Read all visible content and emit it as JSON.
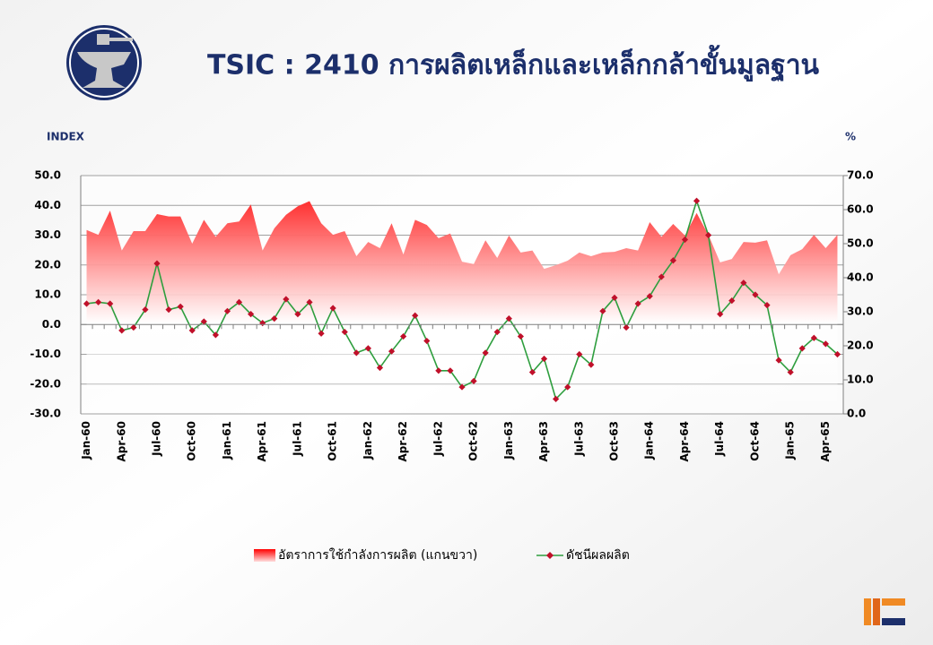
{
  "chart_data": {
    "type": "line",
    "title": "TSIC : 2410 การผลิตเหล็กและเหล็กกล้าขั้นมูลฐาน",
    "y_label": "INDEX",
    "y2_label": "%",
    "categories": [
      "Jan-60",
      null,
      null,
      "Apr-60",
      null,
      null,
      "Jul-60",
      null,
      null,
      "Oct-60",
      null,
      null,
      "Jan-61",
      null,
      null,
      "Apr-61",
      null,
      null,
      "Jul-61",
      null,
      null,
      "Oct-61",
      null,
      null,
      "Jan-62",
      null,
      null,
      "Apr-62",
      null,
      null,
      "Jul-62",
      null,
      null,
      "Oct-62",
      null,
      null,
      "Jan-63",
      null,
      null,
      "Apr-63",
      null,
      null,
      "Jul-63",
      null,
      null,
      "Oct-63",
      null,
      null,
      "Jan-64",
      null,
      null,
      "Apr-64",
      null,
      null,
      "Jul-64",
      null,
      null,
      "Oct-64",
      null,
      null,
      "Jan-65",
      null,
      null,
      "Apr-65",
      null
    ],
    "series": [
      {
        "name": "อัตราการใช้กำลังการผลิต (แกนขวา)",
        "type": "area",
        "axis": "y2",
        "color": "#ff0000",
        "values": [
          54,
          52.6,
          59.7,
          48,
          53.7,
          53.7,
          58.7,
          58,
          58,
          50,
          57,
          52,
          56,
          56.5,
          61.5,
          48,
          54.5,
          58.5,
          61,
          62.5,
          56,
          52.6,
          53.7,
          46.3,
          50.5,
          48.7,
          56,
          46.8,
          57,
          55.5,
          51.6,
          53,
          44.7,
          44,
          51,
          45.8,
          52.4,
          47.4,
          48,
          42.6,
          43.7,
          45,
          47.4,
          46.3,
          47.4,
          47.6,
          48.7,
          48,
          56.3,
          52,
          55.8,
          52.4,
          59,
          52.6,
          44.5,
          45.5,
          50.5,
          50.3,
          51,
          41,
          46.6,
          48.4,
          52.6,
          48.7,
          52.6
        ]
      },
      {
        "name": "ดัชนีผลผลิต",
        "type": "line",
        "color": "#2e9e3e",
        "marker_color": "#c0102a",
        "values": [
          7,
          7.5,
          7,
          -2,
          -1,
          5,
          20.5,
          5,
          6,
          -2,
          1,
          -3.5,
          4.5,
          7.5,
          3.5,
          0.5,
          2,
          8.5,
          3.5,
          7.5,
          -3,
          5.5,
          -2.5,
          -9.5,
          -8,
          -14.5,
          -9,
          -4,
          3,
          -5.5,
          -15.5,
          -15.5,
          -21,
          -19,
          -9.5,
          -2.5,
          2,
          -4,
          -16,
          -11.5,
          -25,
          -21,
          -10,
          -13.5,
          4.5,
          9,
          -1,
          7,
          9.5,
          16,
          21.5,
          28.5,
          41.5,
          30,
          3.5,
          8,
          14,
          10,
          6.5,
          -12,
          -16,
          -8,
          -4.5,
          -6.5,
          -10
        ]
      }
    ],
    "ylim": [
      -30,
      50
    ],
    "yticks": [
      {
        "value": -30,
        "label": "-30.0"
      },
      {
        "value": -20,
        "label": "-20.0"
      },
      {
        "value": -10,
        "label": "-10.0"
      },
      {
        "value": 0,
        "label": "0.0"
      },
      {
        "value": 10,
        "label": "10.0"
      },
      {
        "value": 20,
        "label": "20.0"
      },
      {
        "value": 30,
        "label": "30.0"
      },
      {
        "value": 40,
        "label": "40.0"
      },
      {
        "value": 50,
        "label": "50.0"
      }
    ],
    "y2lim": [
      0,
      70
    ],
    "y2ticks": [
      {
        "value": 0,
        "label": "0.0"
      },
      {
        "value": 10,
        "label": "10.0"
      },
      {
        "value": 20,
        "label": "20.0"
      },
      {
        "value": 30,
        "label": "30.0"
      },
      {
        "value": 40,
        "label": "40.0"
      },
      {
        "value": 50,
        "label": "50.0"
      },
      {
        "value": 60,
        "label": "60.0"
      },
      {
        "value": 70,
        "label": "70.0"
      }
    ],
    "grid": true,
    "legend": "bottom"
  }
}
